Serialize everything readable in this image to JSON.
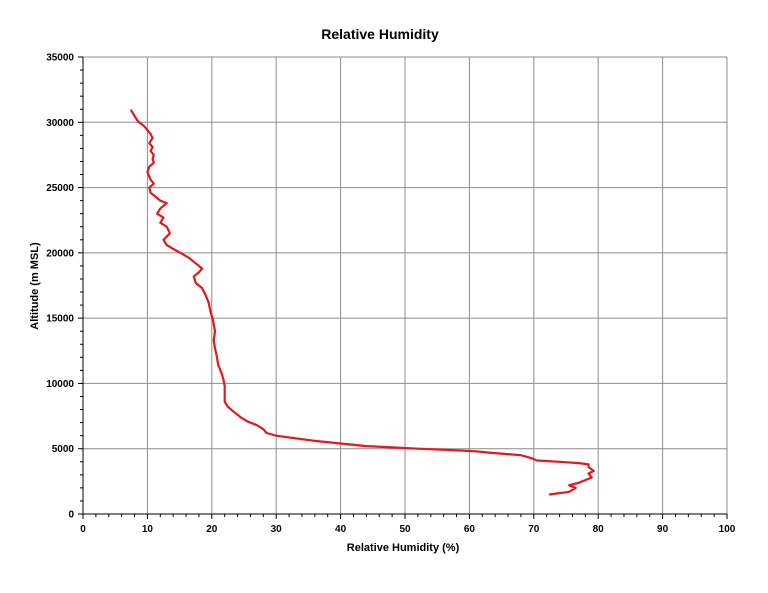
{
  "chart_data": {
    "type": "line",
    "title": "Relative Humidity",
    "xlabel": "Relative Humidity (%)",
    "ylabel": "Altitude (m MSL)",
    "xlim": [
      0,
      100
    ],
    "ylim": [
      0,
      35000
    ],
    "x_ticks": [
      0,
      10,
      20,
      30,
      40,
      50,
      60,
      70,
      80,
      90,
      100
    ],
    "y_ticks": [
      0,
      5000,
      10000,
      15000,
      20000,
      25000,
      30000,
      35000
    ],
    "x_tick_labels": [
      "0",
      "10",
      "20",
      "30",
      "40",
      "50",
      "60",
      "70",
      "80",
      "90",
      "100"
    ],
    "y_tick_labels": [
      "0",
      "5000",
      "10000",
      "15000",
      "20000",
      "25000",
      "30000",
      "35000"
    ],
    "grid": true,
    "legend": "none",
    "series": [
      {
        "color": "#e0191c",
        "x": [
          72.5,
          74.0,
          75.5,
          76.5,
          75.5,
          77.0,
          78.0,
          79.0,
          78.5,
          79.3,
          78.5,
          78.5,
          77.0,
          74.0,
          70.5,
          69.5,
          68.0,
          63.0,
          61.0,
          57.0,
          52.0,
          48.0,
          44.0,
          40.0,
          36.0,
          33.0,
          30.0,
          28.5,
          28.0,
          27.0,
          25.5,
          24.5,
          23.5,
          22.5,
          22.0,
          22.0,
          22.0,
          21.8,
          21.5,
          21.0,
          20.8,
          20.5,
          20.3,
          20.5,
          20.2,
          19.8,
          19.5,
          19.0,
          18.5,
          17.5,
          17.2,
          18.0,
          18.5,
          17.5,
          16.5,
          15.5,
          14.0,
          13.0,
          12.5,
          13.5,
          13.0,
          12.0,
          12.5,
          11.5,
          12.0,
          13.0,
          12.0,
          11.5,
          10.5,
          10.3,
          11.0,
          10.5,
          10.0,
          10.3,
          11.0,
          10.8,
          11.0,
          10.5,
          10.8,
          10.3,
          10.8,
          10.5,
          10.0,
          9.5,
          9.0,
          8.5,
          8.0,
          7.5
        ],
        "y": [
          1500,
          1600,
          1700,
          2000,
          2200,
          2400,
          2600,
          2800,
          3100,
          3300,
          3600,
          3800,
          3900,
          4000,
          4100,
          4300,
          4500,
          4700,
          4800,
          4900,
          5000,
          5100,
          5200,
          5400,
          5600,
          5800,
          6000,
          6200,
          6500,
          6800,
          7100,
          7400,
          7800,
          8200,
          8600,
          9200,
          9800,
          10300,
          10800,
          11400,
          12000,
          12700,
          13300,
          14000,
          14800,
          15500,
          16200,
          16800,
          17300,
          17700,
          18200,
          18500,
          18800,
          19200,
          19600,
          19900,
          20300,
          20600,
          21000,
          21500,
          22000,
          22300,
          22700,
          23000,
          23400,
          23800,
          24000,
          24200,
          24600,
          25000,
          25300,
          25600,
          26200,
          26600,
          26900,
          27200,
          27500,
          27800,
          28100,
          28400,
          28800,
          29100,
          29400,
          29700,
          29900,
          30100,
          30500,
          30900
        ]
      }
    ]
  }
}
